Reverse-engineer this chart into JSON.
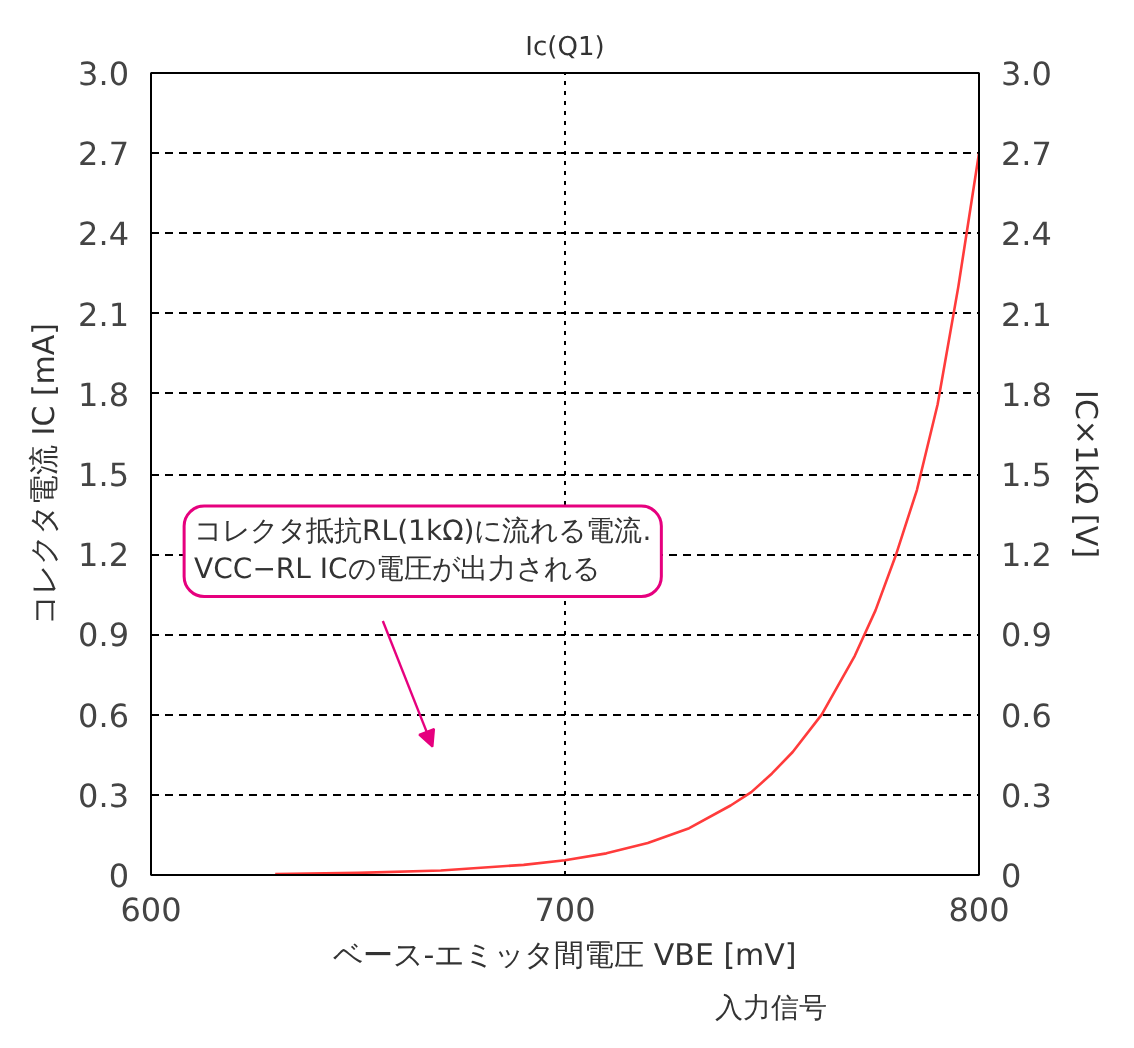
{
  "chart_data": {
    "type": "line",
    "title": "Ic(Q1)",
    "xlabel": "ベース-エミッタ間電圧 VBE [mV]",
    "ylabel": "コレクタ電流 IC [mA]",
    "y2label": "IC×1kΩ [V]",
    "x": [
      630,
      650,
      670,
      690,
      700,
      710,
      720,
      730,
      740,
      745,
      750,
      755,
      762,
      770,
      775,
      780,
      785,
      790,
      795,
      800
    ],
    "series": [
      {
        "color": "#ff3b3b",
        "values": [
          0.004,
          0.008,
          0.017,
          0.038,
          0.055,
          0.081,
          0.12,
          0.175,
          0.26,
          0.31,
          0.38,
          0.46,
          0.6,
          0.82,
          0.99,
          1.2,
          1.44,
          1.76,
          2.2,
          2.7
        ]
      }
    ],
    "xlim": [
      600,
      800
    ],
    "xticks": [
      600,
      700,
      800
    ],
    "ylim": [
      0,
      3
    ],
    "yticks": [
      0,
      0.3,
      0.6,
      0.9,
      1.2,
      1.5,
      1.8,
      2.1,
      2.4,
      2.7,
      {
        "value": 3,
        "label": "3.0"
      }
    ],
    "y2lim": [
      0,
      3
    ],
    "y2ticks": [
      0,
      0.3,
      0.6,
      0.9,
      1.2,
      1.5,
      1.8,
      2.1,
      2.4,
      2.7,
      {
        "value": 3,
        "label": "3.0"
      }
    ],
    "grid": true,
    "annotations": [
      "コレクタ抵抗RL(1kΩ)に流れる電流.\nVCC−RL ICの電圧が出力される",
      "入力信号"
    ]
  }
}
